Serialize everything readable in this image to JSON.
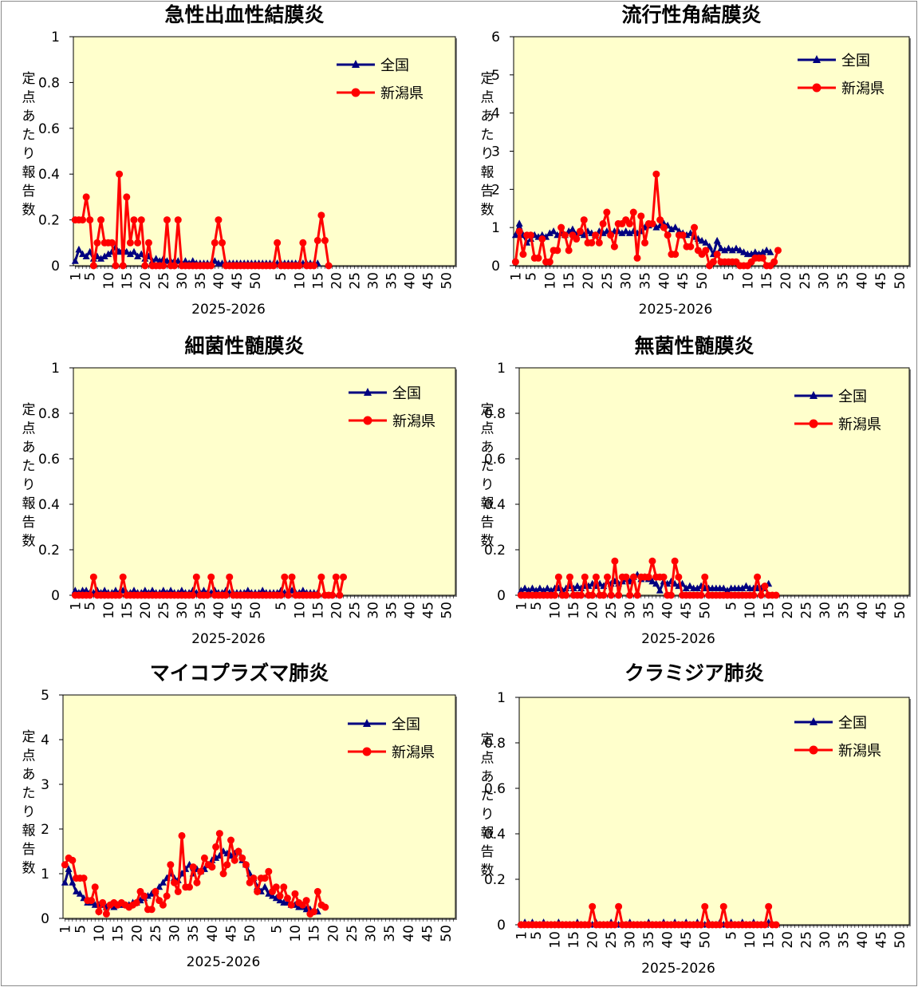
{
  "colors": {
    "national": "#000080",
    "prefecture": "#ff0000",
    "plot_bg": "#ffffcc"
  },
  "chart_data": [
    {
      "type": "line",
      "title": "急性出血性結膜炎",
      "ylabel": "定点あたり報告数",
      "xlabel": "2025-2026",
      "ylim": [
        0,
        1
      ],
      "yticks": [
        "0",
        "0.2",
        "0.4",
        "0.6",
        "0.8",
        "1"
      ],
      "xticks": [
        "1",
        "5",
        "10",
        "15",
        "20",
        "25",
        "30",
        "35",
        "40",
        "45",
        "50",
        "5",
        "10",
        "15",
        "20",
        "25",
        "30",
        "35",
        "40",
        "45",
        "50"
      ],
      "legend_position": "top-right",
      "series": [
        {
          "name": "全国",
          "marker": "triangle",
          "values": [
            0.02,
            0.07,
            0.05,
            0.04,
            0.06,
            0.03,
            0.04,
            0.03,
            0.04,
            0.05,
            0.06,
            0.08,
            0.06,
            0.07,
            0.06,
            0.05,
            0.06,
            0.04,
            0.05,
            0.03,
            0.04,
            0.02,
            0.03,
            0.02,
            0.03,
            0.02,
            0.02,
            0.02,
            0.02,
            0.01,
            0.02,
            0.01,
            0.02,
            0.01,
            0.01,
            0.01,
            0.01,
            0.01,
            0.02,
            0.01,
            0.01,
            0.01,
            0.01,
            0.01,
            0.01,
            0.01,
            0.01,
            0.01,
            0.01,
            0.01,
            0.01,
            0.01,
            0.01,
            0.01,
            0.01,
            0.01,
            0.01,
            0.01,
            0.01,
            0.01,
            0.01,
            0.01,
            0.01,
            0.01,
            0.01,
            0.01,
            0.01
          ]
        },
        {
          "name": "新潟県",
          "marker": "circle",
          "values": [
            0.2,
            0.2,
            0.2,
            0.3,
            0.2,
            0,
            0.1,
            0.2,
            0.1,
            0.1,
            0.1,
            0,
            0.4,
            0,
            0.3,
            0.1,
            0.2,
            0.1,
            0.2,
            0,
            0.1,
            0,
            0,
            0,
            0,
            0.2,
            0,
            0,
            0.2,
            0,
            0,
            0,
            0,
            0,
            0,
            0,
            0,
            0,
            0.1,
            0.2,
            0.1,
            0,
            0,
            0,
            0,
            0,
            0,
            0,
            0,
            0,
            0,
            0,
            0,
            0,
            0,
            0.1,
            0,
            0,
            0,
            0,
            0,
            0,
            0.1,
            0,
            0,
            0,
            0.11,
            0.22,
            0.11,
            0
          ]
        }
      ]
    },
    {
      "type": "line",
      "title": "流行性角結膜炎",
      "ylabel": "定点あたり報告数",
      "xlabel": "2025-2026",
      "ylim": [
        0,
        6
      ],
      "yticks": [
        "0",
        "1",
        "2",
        "3",
        "4",
        "5",
        "6"
      ],
      "xticks": [
        "1",
        "5",
        "10",
        "15",
        "20",
        "25",
        "30",
        "35",
        "40",
        "45",
        "50",
        "5",
        "10",
        "15",
        "20",
        "25",
        "30",
        "35",
        "40",
        "45",
        "50"
      ],
      "legend_position": "top-right",
      "series": [
        {
          "name": "全国",
          "marker": "triangle",
          "values": [
            0.8,
            1.1,
            0.8,
            0.6,
            0.7,
            0.8,
            0.75,
            0.8,
            0.75,
            0.85,
            0.9,
            0.8,
            0.85,
            0.8,
            0.9,
            0.95,
            0.8,
            0.85,
            0.8,
            0.9,
            0.85,
            0.8,
            0.9,
            0.85,
            0.9,
            0.85,
            0.9,
            0.9,
            0.85,
            0.9,
            0.85,
            0.9,
            0.85,
            0.9,
            1.0,
            1.05,
            1.1,
            1.0,
            1.05,
            1.1,
            1.05,
            0.95,
            1.0,
            0.9,
            0.85,
            0.8,
            0.85,
            0.75,
            0.7,
            0.65,
            0.6,
            0.5,
            0.3,
            0.65,
            0.45,
            0.4,
            0.45,
            0.4,
            0.45,
            0.4,
            0.35,
            0.3,
            0.3,
            0.35,
            0.3,
            0.35,
            0.4,
            0.35
          ]
        },
        {
          "name": "新潟県",
          "marker": "circle",
          "values": [
            0.1,
            0.9,
            0.3,
            0.8,
            0.8,
            0.2,
            0.2,
            0.7,
            0.1,
            0.1,
            0.4,
            0.4,
            1.0,
            0.8,
            0.4,
            0.8,
            0.7,
            0.9,
            1.2,
            0.6,
            0.6,
            0.8,
            0.6,
            1.1,
            1.4,
            0.8,
            0.5,
            1.1,
            1.1,
            1.2,
            1.1,
            1.4,
            0.2,
            1.3,
            0.6,
            1.1,
            1.1,
            2.4,
            1.2,
            1.0,
            0.8,
            0.3,
            0.3,
            0.8,
            0.8,
            0.5,
            0.5,
            1.0,
            0.4,
            0.3,
            0.4,
            0,
            0.1,
            0.3,
            0.1,
            0.1,
            0.1,
            0.1,
            0.1,
            0,
            0,
            0,
            0.1,
            0.2,
            0.2,
            0.2,
            0,
            0,
            0.1,
            0.4
          ]
        }
      ]
    },
    {
      "type": "line",
      "title": "細菌性髄膜炎",
      "ylabel": "定点あたり報告数",
      "xlabel": "2025-2026",
      "ylim": [
        0,
        1
      ],
      "yticks": [
        "0",
        "0.2",
        "0.4",
        "0.6",
        "0.8",
        "1"
      ],
      "xticks": [
        "1",
        "5",
        "10",
        "15",
        "20",
        "25",
        "30",
        "35",
        "40",
        "45",
        "50",
        "5",
        "10",
        "15",
        "20",
        "25",
        "30",
        "35",
        "40",
        "45",
        "50"
      ],
      "legend_position": "top-right",
      "series": [
        {
          "name": "全国",
          "marker": "triangle",
          "values": [
            0.02,
            0.01,
            0.02,
            0.02,
            0.01,
            0.01,
            0.02,
            0.01,
            0.02,
            0.01,
            0.01,
            0.02,
            0.01,
            0.02,
            0.01,
            0.01,
            0.02,
            0.01,
            0.01,
            0.02,
            0.01,
            0.02,
            0.01,
            0.01,
            0.02,
            0.01,
            0.02,
            0.01,
            0.01,
            0.02,
            0.01,
            0.01,
            0.02,
            0.01,
            0.01,
            0.02,
            0.01,
            0.01,
            0.02,
            0.01,
            0.01,
            0.02,
            0.01,
            0.01,
            0.01,
            0.01,
            0.01,
            0.02,
            0.01,
            0.01,
            0.01,
            0.02,
            0.01,
            0.01,
            0.01,
            0.01,
            0.02,
            0.01,
            0.01,
            0.02,
            0.01,
            0.01,
            0.02,
            0.01,
            0.01,
            0.01,
            0.01
          ]
        },
        {
          "name": "新潟県",
          "marker": "circle",
          "values": [
            0,
            0,
            0,
            0,
            0,
            0.08,
            0,
            0,
            0,
            0,
            0,
            0,
            0,
            0.08,
            0,
            0,
            0,
            0,
            0,
            0,
            0,
            0,
            0,
            0,
            0,
            0,
            0,
            0,
            0,
            0,
            0,
            0,
            0,
            0.08,
            0,
            0,
            0,
            0.08,
            0,
            0,
            0,
            0,
            0.08,
            0,
            0,
            0,
            0,
            0,
            0,
            0,
            0,
            0,
            0,
            0,
            0,
            0,
            0,
            0.08,
            0,
            0.08,
            0,
            0,
            0,
            0,
            0,
            0,
            0,
            0.08,
            0,
            0,
            0,
            0.08,
            0,
            0.08
          ]
        }
      ]
    },
    {
      "type": "line",
      "title": "無菌性髄膜炎",
      "ylabel": "定点あたり報告数",
      "xlabel": "2025-2026",
      "ylim": [
        0,
        1
      ],
      "yticks": [
        "0",
        "0.2",
        "0.4",
        "0.6",
        "0.8",
        "1"
      ],
      "xticks": [
        "1",
        "5",
        "10",
        "15",
        "20",
        "25",
        "30",
        "35",
        "40",
        "45",
        "50",
        "5",
        "10",
        "15",
        "20",
        "25",
        "30",
        "35",
        "40",
        "45",
        "50"
      ],
      "legend_position": "top-right",
      "series": [
        {
          "name": "全国",
          "marker": "triangle",
          "values": [
            0.02,
            0.03,
            0.02,
            0.03,
            0.02,
            0.03,
            0.02,
            0.03,
            0.02,
            0.03,
            0.03,
            0.02,
            0.03,
            0.04,
            0.03,
            0.04,
            0.03,
            0.04,
            0.04,
            0.05,
            0.04,
            0.05,
            0.04,
            0.06,
            0.05,
            0.06,
            0.05,
            0.06,
            0.07,
            0.06,
            0.08,
            0.09,
            0.07,
            0.08,
            0.07,
            0.06,
            0.05,
            0.02,
            0.06,
            0.05,
            0.06,
            0.05,
            0.04,
            0.05,
            0.03,
            0.04,
            0.03,
            0.03,
            0.04,
            0.03,
            0.03,
            0.03,
            0.03,
            0.03,
            0.03,
            0.02,
            0.03,
            0.03,
            0.03,
            0.03,
            0.04,
            0.03,
            0.03,
            0.03,
            0.03,
            0.03,
            0.05
          ]
        },
        {
          "name": "新潟県",
          "marker": "circle",
          "values": [
            0,
            0,
            0,
            0,
            0,
            0,
            0,
            0,
            0,
            0,
            0.08,
            0,
            0,
            0.08,
            0,
            0,
            0,
            0.08,
            0,
            0,
            0.08,
            0,
            0,
            0.08,
            0,
            0.15,
            0,
            0.08,
            0.08,
            0,
            0.08,
            0,
            0.08,
            0.08,
            0.08,
            0.15,
            0.08,
            0.08,
            0.08,
            0,
            0,
            0.15,
            0.08,
            0,
            0,
            0,
            0,
            0,
            0,
            0.08,
            0,
            0,
            0,
            0,
            0,
            0,
            0,
            0,
            0,
            0,
            0,
            0,
            0,
            0.08,
            0,
            0.04,
            0,
            0,
            0
          ]
        }
      ]
    },
    {
      "type": "line",
      "title": "マイコプラズマ肺炎",
      "ylabel": "定点あたり報告数",
      "xlabel": "2025-2026",
      "ylim": [
        0,
        5
      ],
      "yticks": [
        "0",
        "1",
        "2",
        "3",
        "4",
        "5"
      ],
      "xticks": [
        "1",
        "5",
        "10",
        "15",
        "20",
        "25",
        "30",
        "35",
        "40",
        "45",
        "50",
        "5",
        "10",
        "15",
        "20",
        "25",
        "30",
        "35",
        "40",
        "45",
        "50"
      ],
      "legend_position": "top-right",
      "series": [
        {
          "name": "全国",
          "marker": "triangle",
          "values": [
            0.8,
            1.1,
            0.8,
            0.6,
            0.55,
            0.45,
            0.35,
            0.35,
            0.3,
            0.3,
            0.3,
            0.25,
            0.3,
            0.25,
            0.3,
            0.3,
            0.3,
            0.3,
            0.35,
            0.35,
            0.4,
            0.45,
            0.5,
            0.55,
            0.6,
            0.7,
            0.8,
            0.9,
            1.0,
            0.9,
            0.85,
            1.0,
            1.1,
            1.2,
            1.0,
            1.1,
            1.05,
            1.1,
            1.2,
            1.3,
            1.35,
            1.4,
            1.5,
            1.45,
            1.4,
            1.45,
            1.5,
            1.3,
            1.2,
            1.0,
            0.9,
            0.7,
            0.6,
            0.7,
            0.55,
            0.5,
            0.45,
            0.4,
            0.35,
            0.35,
            0.3,
            0.3,
            0.25,
            0.25,
            0.2,
            0.2,
            0.15,
            0.15
          ]
        },
        {
          "name": "新潟県",
          "marker": "circle",
          "values": [
            1.2,
            1.35,
            1.3,
            0.9,
            0.9,
            0.9,
            0.4,
            0.4,
            0.7,
            0.15,
            0.35,
            0.1,
            0.3,
            0.35,
            0.3,
            0.35,
            0.3,
            0.25,
            0.3,
            0.35,
            0.6,
            0.5,
            0.2,
            0.2,
            0.6,
            0.4,
            0.3,
            0.5,
            1.2,
            0.8,
            0.6,
            1.85,
            0.7,
            0.7,
            1.15,
            0.8,
            1.05,
            1.35,
            1.2,
            1.15,
            1.6,
            1.9,
            1.0,
            1.2,
            1.75,
            1.3,
            1.5,
            1.35,
            1.2,
            0.8,
            0.9,
            0.6,
            0.9,
            0.9,
            1.05,
            0.6,
            0.7,
            0.5,
            0.7,
            0.45,
            0.3,
            0.55,
            0.35,
            0.3,
            0.4,
            0.1,
            0.15,
            0.6,
            0.3,
            0.25
          ]
        }
      ]
    },
    {
      "type": "line",
      "title": "クラミジア肺炎",
      "ylabel": "定点あたり報告数",
      "xlabel": "2025-2026",
      "ylim": [
        0,
        1
      ],
      "yticks": [
        "0",
        "0.2",
        "0.4",
        "0.6",
        "0.8",
        "1"
      ],
      "xticks": [
        "1",
        "5",
        "10",
        "15",
        "20",
        "25",
        "30",
        "35",
        "40",
        "45",
        "50",
        "5",
        "10",
        "15",
        "20",
        "25",
        "30",
        "35",
        "40",
        "45",
        "50"
      ],
      "legend_position": "top-right",
      "series": [
        {
          "name": "全国",
          "marker": "triangle",
          "values": [
            0,
            0.01,
            0,
            0.01,
            0,
            0,
            0.01,
            0,
            0,
            0,
            0.01,
            0,
            0,
            0,
            0,
            0.01,
            0,
            0,
            0,
            0,
            0.01,
            0,
            0,
            0,
            0.01,
            0,
            0,
            0,
            0,
            0.01,
            0,
            0,
            0,
            0,
            0.01,
            0,
            0,
            0,
            0.01,
            0,
            0,
            0.01,
            0,
            0,
            0.01,
            0,
            0,
            0.01,
            0,
            0,
            0.01,
            0,
            0,
            0.01,
            0,
            0,
            0.01,
            0,
            0,
            0.01,
            0,
            0,
            0.01,
            0,
            0,
            0,
            0.01
          ]
        },
        {
          "name": "新潟県",
          "marker": "circle",
          "values": [
            0,
            0,
            0,
            0,
            0,
            0,
            0,
            0,
            0,
            0,
            0,
            0,
            0,
            0,
            0,
            0,
            0,
            0,
            0,
            0.08,
            0,
            0,
            0,
            0,
            0,
            0,
            0.08,
            0,
            0,
            0,
            0,
            0,
            0,
            0,
            0,
            0,
            0,
            0,
            0,
            0,
            0,
            0,
            0,
            0,
            0,
            0,
            0,
            0,
            0,
            0.08,
            0,
            0,
            0,
            0,
            0.08,
            0,
            0,
            0,
            0,
            0,
            0,
            0,
            0,
            0,
            0,
            0,
            0.08,
            0,
            0
          ]
        }
      ]
    }
  ]
}
